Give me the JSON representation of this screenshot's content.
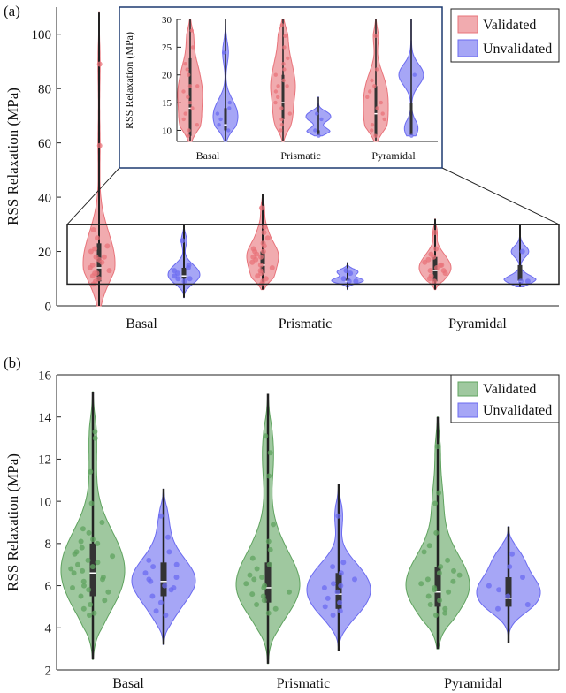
{
  "panels": {
    "a": {
      "label": "(a)"
    },
    "b": {
      "label": "(b)"
    }
  },
  "colors": {
    "validated_a": "#e8737a",
    "validated_b": "#5fa35f",
    "unvalidated": "#6b6bf0",
    "axis": "#222222"
  },
  "chart_data": [
    {
      "id": "panel-a-main",
      "type": "violin",
      "ylabel": "RSS Relaxation (MPa)",
      "ylim": [
        0,
        110
      ],
      "yticks": [
        0,
        20,
        40,
        60,
        80,
        100
      ],
      "categories": [
        "Basal",
        "Prismatic",
        "Pyramidal"
      ],
      "legend": {
        "placement": "top-right",
        "entries": [
          "Validated",
          "Unvalidated"
        ]
      },
      "series": [
        {
          "name": "Validated",
          "ranges": [
            [
              0,
              108
            ],
            [
              6,
              41
            ],
            [
              6,
              32
            ]
          ],
          "medians": [
            14,
            15,
            13
          ],
          "quartiles": [
            [
              9,
              23
            ],
            [
              12,
              20
            ],
            [
              9,
              18
            ]
          ],
          "points": [
            [
              59,
              89,
              28,
              25,
              22,
              20,
              18,
              17,
              16,
              15,
              14,
              13,
              12,
              11,
              10,
              9,
              8,
              18,
              21,
              12
            ],
            [
              36,
              29,
              27,
              25,
              23,
              22,
              21,
              20,
              19,
              18,
              17,
              16,
              15,
              14,
              13,
              12,
              11,
              10,
              9,
              8,
              18,
              20
            ],
            [
              27,
              21,
              19,
              18,
              17,
              16,
              15,
              14,
              13,
              12,
              11,
              10,
              9,
              15,
              13
            ]
          ]
        },
        {
          "name": "Unvalidated",
          "ranges": [
            [
              3,
              30
            ],
            [
              6,
              16
            ],
            [
              7,
              30
            ]
          ],
          "medians": [
            11,
            9,
            9
          ],
          "quartiles": [
            [
              10,
              14
            ],
            [
              9,
              10
            ],
            [
              9,
              15
            ]
          ],
          "points": [
            [
              24,
              15,
              14,
              13,
              12,
              11,
              10,
              10,
              9
            ],
            [
              13,
              12,
              10,
              9,
              9
            ],
            [
              20,
              9,
              9
            ]
          ]
        }
      ]
    },
    {
      "id": "panel-a-inset",
      "type": "violin",
      "ylabel": "RSS Relaxation (MPa)",
      "ylim": [
        8,
        30
      ],
      "yticks": [
        10,
        15,
        20,
        25,
        30
      ],
      "categories": [
        "Basal",
        "Prismatic",
        "Pyramidal"
      ],
      "zoom_box_ylim": [
        8,
        30
      ],
      "series": [
        {
          "name": "Validated",
          "ranges": [
            [
              8,
              30
            ],
            [
              8,
              30
            ],
            [
              8,
              30
            ]
          ],
          "medians": [
            14,
            15,
            13
          ],
          "quartiles": [
            [
              9,
              23
            ],
            [
              12,
              20
            ],
            [
              9,
              18
            ]
          ],
          "points": [
            [
              28,
              25,
              22,
              20,
              18,
              17,
              16,
              15,
              14,
              13,
              12,
              11,
              10,
              9,
              18,
              21
            ],
            [
              29,
              27,
              25,
              23,
              22,
              21,
              20,
              19,
              18,
              17,
              16,
              15,
              14,
              13,
              12,
              11,
              10,
              18
            ],
            [
              27,
              21,
              19,
              18,
              17,
              16,
              15,
              14,
              13,
              12,
              11,
              10,
              9
            ]
          ]
        },
        {
          "name": "Unvalidated",
          "ranges": [
            [
              8,
              30
            ],
            [
              9,
              16
            ],
            [
              9,
              30
            ]
          ],
          "medians": [
            11,
            9,
            9
          ],
          "quartiles": [
            [
              10,
              14
            ],
            [
              9,
              10
            ],
            [
              9,
              15
            ]
          ],
          "points": [
            [
              24,
              15,
              14,
              13,
              12,
              11,
              10
            ],
            [
              13,
              12,
              10,
              9
            ],
            [
              20,
              9
            ]
          ]
        }
      ]
    },
    {
      "id": "panel-b",
      "type": "violin",
      "ylabel": "RSS Relaxation (MPa)",
      "ylim": [
        2,
        16
      ],
      "yticks": [
        2,
        4,
        6,
        8,
        10,
        12,
        14,
        16
      ],
      "categories": [
        "Basal",
        "Prismatic",
        "Pyramidal"
      ],
      "legend": {
        "placement": "top-right",
        "entries": [
          "Validated",
          "Unvalidated"
        ]
      },
      "series": [
        {
          "name": "Validated",
          "ranges": [
            [
              2.5,
              15.2
            ],
            [
              2.3,
              15.1
            ],
            [
              3.0,
              14.0
            ]
          ],
          "medians": [
            6.6,
            5.9,
            5.7
          ],
          "quartiles": [
            [
              5.5,
              8.0
            ],
            [
              5.2,
              7.1
            ],
            [
              5.0,
              6.9
            ]
          ],
          "points": [
            [
              13.3,
              13.0,
              11.4,
              9.9,
              9.0,
              8.7,
              8.5,
              8.2,
              8.0,
              7.8,
              7.6,
              7.4,
              7.2,
              7.0,
              6.9,
              6.7,
              6.6,
              6.4,
              6.2,
              6.0,
              5.9,
              5.7,
              5.5,
              5.3,
              5.1,
              4.9,
              4.7,
              4.6,
              6.3,
              7.1,
              7.5,
              8.1,
              5.8,
              6.8
            ],
            [
              13.1,
              12.3,
              11.2,
              8.9,
              8.1,
              7.7,
              7.3,
              7.0,
              6.8,
              6.5,
              6.3,
              6.1,
              5.9,
              5.7,
              5.5,
              5.3,
              5.1,
              4.9,
              4.7,
              6.4,
              6.0,
              5.6
            ],
            [
              12.6,
              10.4,
              9.9,
              8.5,
              7.9,
              7.6,
              7.2,
              6.9,
              6.7,
              6.5,
              6.3,
              6.1,
              5.9,
              5.7,
              5.5,
              5.3,
              5.1,
              4.9,
              4.7,
              4.6,
              6.2,
              5.8,
              6.6
            ]
          ]
        },
        {
          "name": "Unvalidated",
          "ranges": [
            [
              3.2,
              10.6
            ],
            [
              2.9,
              10.8
            ],
            [
              3.3,
              8.8
            ]
          ],
          "medians": [
            6.2,
            5.6,
            5.4
          ],
          "quartiles": [
            [
              5.5,
              7.1
            ],
            [
              4.9,
              6.6
            ],
            [
              5.0,
              6.4
            ]
          ],
          "points": [
            [
              9.3,
              8.3,
              7.6,
              7.2,
              6.9,
              6.6,
              6.4,
              6.2,
              6.0,
              5.8,
              5.5,
              5.2,
              4.8,
              4.6,
              6.3,
              5.9,
              7.0
            ],
            [
              9.3,
              7.1,
              6.9,
              6.6,
              6.3,
              6.0,
              5.7,
              5.4,
              5.0,
              4.8,
              4.6,
              5.2,
              5.9,
              6.1
            ],
            [
              7.5,
              6.9,
              6.4,
              6.0,
              5.5,
              5.1,
              4.9,
              5.8
            ]
          ]
        }
      ]
    }
  ]
}
